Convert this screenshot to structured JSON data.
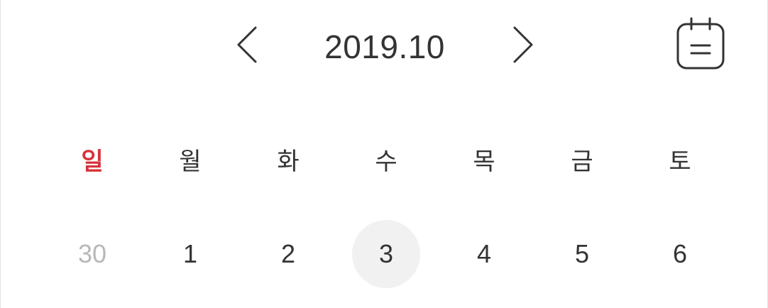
{
  "header": {
    "month_label": "2019.10",
    "prev_icon": "chevron-left-icon",
    "next_icon": "chevron-right-icon",
    "calendar_icon": "calendar-list-icon"
  },
  "weekdays": [
    "일",
    "월",
    "화",
    "수",
    "목",
    "금",
    "토"
  ],
  "days": [
    {
      "label": "30",
      "state": "other-month"
    },
    {
      "label": "1",
      "state": "normal"
    },
    {
      "label": "2",
      "state": "normal"
    },
    {
      "label": "3",
      "state": "selected"
    },
    {
      "label": "4",
      "state": "normal"
    },
    {
      "label": "5",
      "state": "normal"
    },
    {
      "label": "6",
      "state": "normal"
    }
  ],
  "colors": {
    "sunday": "#d6323c",
    "text": "#333333",
    "muted": "#b8b8b8",
    "selected_bg": "#f1f1f1"
  }
}
